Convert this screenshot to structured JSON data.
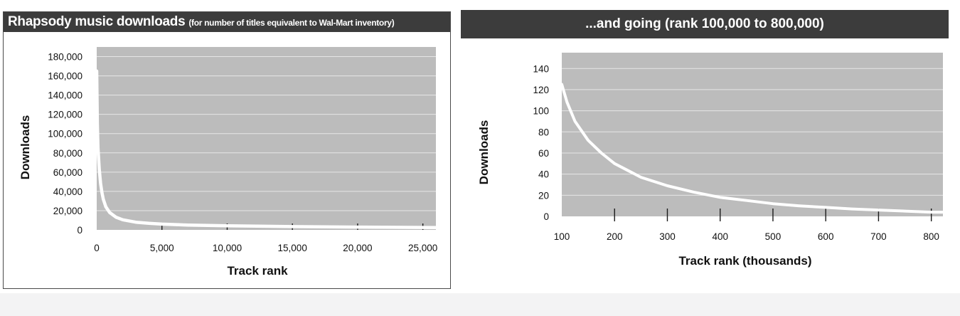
{
  "colors": {
    "header_bg": "#3c3c3c",
    "plot_bg": "#bcbcbc",
    "gridline": "#e6e6e6",
    "curve": "#ffffff",
    "text": "#111111"
  },
  "chart_data": [
    {
      "type": "line",
      "title": "Rhapsody music downloads",
      "subtitle": "(for number of titles equivalent to Wal-Mart inventory)",
      "xlabel": "Track rank",
      "ylabel": "Downloads",
      "xlim": [
        0,
        26000
      ],
      "ylim": [
        0,
        190000
      ],
      "x_ticks": [
        0,
        5000,
        10000,
        15000,
        20000,
        25000
      ],
      "x_tick_labels": [
        "0",
        "5,000",
        "10,000",
        "15,000",
        "20,000",
        "25,000"
      ],
      "y_ticks": [
        0,
        20000,
        40000,
        60000,
        80000,
        100000,
        120000,
        140000,
        160000,
        180000
      ],
      "y_tick_labels": [
        "0",
        "20,000",
        "40,000",
        "60,000",
        "80,000",
        "100,000",
        "120,000",
        "140,000",
        "160,000",
        "180,000"
      ],
      "grid": true,
      "series": [
        {
          "x": [
            0,
            50,
            100,
            200,
            300,
            400,
            500,
            700,
            1000,
            1500,
            2000,
            3000,
            4000,
            5000,
            7000,
            10000,
            15000,
            20000,
            25000,
            26000
          ],
          "y": [
            165000,
            110000,
            85000,
            62000,
            48000,
            39000,
            32000,
            24000,
            18000,
            13000,
            10500,
            8000,
            6800,
            6000,
            5000,
            4200,
            3400,
            2900,
            2500,
            2400
          ]
        }
      ]
    },
    {
      "type": "line",
      "title": "...and going (rank 100,000 to 800,000)",
      "xlabel": "Track rank (thousands)",
      "ylabel": "Downloads",
      "xlim": [
        100,
        822
      ],
      "ylim": [
        0,
        155
      ],
      "x_ticks": [
        100,
        200,
        300,
        400,
        500,
        600,
        700,
        800
      ],
      "x_tick_labels": [
        "100",
        "200",
        "300",
        "400",
        "500",
        "600",
        "700",
        "800"
      ],
      "y_ticks": [
        0,
        20,
        40,
        60,
        80,
        100,
        120,
        140
      ],
      "y_tick_labels": [
        "0",
        "20",
        "40",
        "60",
        "80",
        "100",
        "120",
        "140"
      ],
      "grid": true,
      "series": [
        {
          "x": [
            100,
            110,
            125,
            150,
            175,
            200,
            250,
            300,
            350,
            400,
            450,
            500,
            550,
            600,
            650,
            700,
            750,
            800,
            822
          ],
          "y": [
            125,
            108,
            90,
            72,
            60,
            50,
            37,
            29,
            23,
            18,
            15,
            12,
            10,
            8.5,
            7,
            6,
            5,
            4,
            4
          ]
        }
      ]
    }
  ]
}
